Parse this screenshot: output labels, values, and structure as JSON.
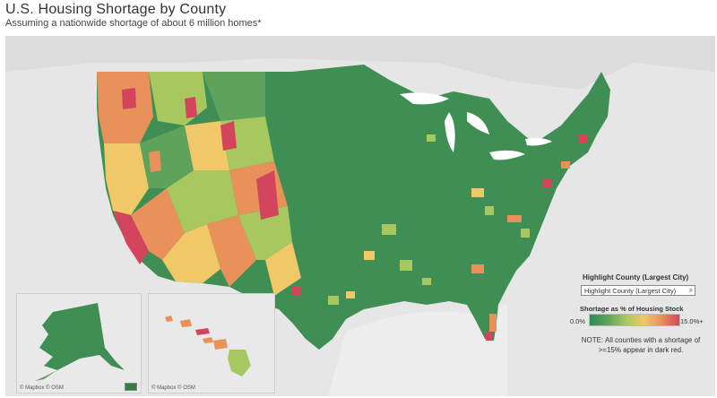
{
  "header": {
    "title": "U.S. Housing Shortage by County",
    "subtitle": "Assuming a nationwide shortage of about 6 million homes*"
  },
  "insets": {
    "alaska_attribution": "© Mapbox  © OSM",
    "hawaii_attribution": "© Mapbox  © OSM"
  },
  "highlight": {
    "title": "Highlight County (Largest City)",
    "placeholder": "Highlight County (Largest City)",
    "search_icon": "search-icon"
  },
  "legend": {
    "title": "Shortage as % of Housing Stock",
    "min_label": "0.0%",
    "max_label": "15.0%+",
    "colors": [
      "#2e8b57",
      "#5fa25b",
      "#a6c85e",
      "#f0c868",
      "#e9915a",
      "#d2455c"
    ]
  },
  "note": {
    "line1": "NOTE: All counties with a shortage of",
    "line2": ">=15% appear in dark red."
  },
  "colors": {
    "land": "#e6e6e6",
    "water": "#ffffff",
    "low": "#2e8b57",
    "high": "#d2455c"
  }
}
